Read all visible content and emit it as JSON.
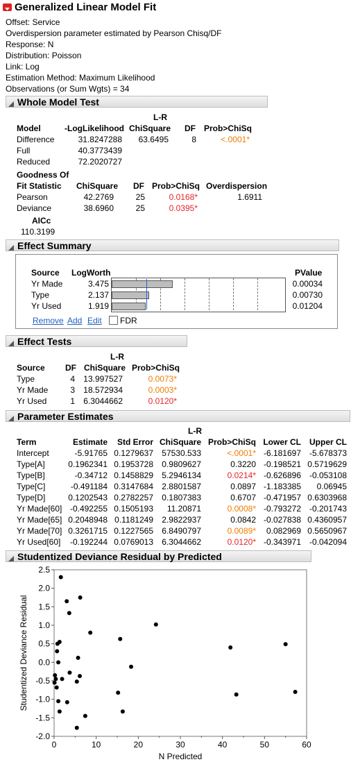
{
  "title": "Generalized Linear Model Fit",
  "info": [
    "Offset: Service",
    "Overdispersion parameter estimated by Pearson Chisq/DF",
    "Response: N",
    "Distribution: Poisson",
    "Link: Log",
    "Estimation Method: Maximum Likelihood",
    "Observations (or Sum Wgts) = 34"
  ],
  "whole_model": {
    "title": "Whole Model Test",
    "lr_head": "L-R",
    "headers": [
      "Model",
      "-LogLikelihood",
      "ChiSquare",
      "DF",
      "Prob>ChiSq"
    ],
    "rows": [
      [
        "Difference",
        "31.8247288",
        "63.6495",
        "8",
        "<.0001*"
      ],
      [
        "Full",
        "40.3773439",
        "",
        "",
        ""
      ],
      [
        "Reduced",
        "72.2020727",
        "",
        "",
        ""
      ]
    ],
    "gof_head1": "Goodness Of",
    "gof_headers": [
      "Fit Statistic",
      "ChiSquare",
      "DF",
      "Prob>ChiSq",
      "Overdispersion"
    ],
    "gof_rows": [
      [
        "Pearson",
        "42.2769",
        "25",
        "0.0168*",
        "1.6911"
      ],
      [
        "Deviance",
        "38.6960",
        "25",
        "0.0395*",
        ""
      ]
    ],
    "aicc_label": "AICc",
    "aicc_value": "110.3199"
  },
  "effect_summary": {
    "title": "Effect Summary",
    "headers": [
      "Source",
      "LogWorth",
      "PValue"
    ],
    "rows": [
      {
        "source": "Yr Made",
        "logworth": "3.475",
        "pvalue": "0.00034",
        "lw": 3.475
      },
      {
        "source": "Type",
        "logworth": "2.137",
        "pvalue": "0.00730",
        "lw": 2.137
      },
      {
        "source": "Yr Used",
        "logworth": "1.919",
        "pvalue": "0.01204",
        "lw": 1.919
      }
    ],
    "buttons": [
      "Remove",
      "Add",
      "Edit"
    ],
    "fdr_label": "FDR"
  },
  "effect_tests": {
    "title": "Effect Tests",
    "lr_head": "L-R",
    "headers": [
      "Source",
      "DF",
      "ChiSquare",
      "Prob>ChiSq"
    ],
    "rows": [
      [
        "Type",
        "4",
        "13.997527",
        "0.0073*"
      ],
      [
        "Yr Made",
        "3",
        "18.572934",
        "0.0003*"
      ],
      [
        "Yr Used",
        "1",
        "6.3044662",
        "0.0120*"
      ]
    ]
  },
  "param_est": {
    "title": "Parameter Estimates",
    "lr_head": "L-R",
    "headers": [
      "Term",
      "Estimate",
      "Std Error",
      "ChiSquare",
      "Prob>ChiSq",
      "Lower CL",
      "Upper CL"
    ],
    "rows": [
      [
        "Intercept",
        "-5.91765",
        "0.1279637",
        "57530.533",
        "<.0001*",
        "-6.181697",
        "-5.678373"
      ],
      [
        "Type[A]",
        "0.1962341",
        "0.1953728",
        "0.9809627",
        "0.3220",
        "-0.198521",
        "0.5719629"
      ],
      [
        "Type[B]",
        "-0.34712",
        "0.1458829",
        "5.2946134",
        "0.0214*",
        "-0.626896",
        "-0.053108"
      ],
      [
        "Type[C]",
        "-0.491184",
        "0.3147684",
        "2.8801587",
        "0.0897",
        "-1.183385",
        "0.06945"
      ],
      [
        "Type[D]",
        "0.1202543",
        "0.2782257",
        "0.1807383",
        "0.6707",
        "-0.471957",
        "0.6303968"
      ],
      [
        "Yr Made[60]",
        "-0.492255",
        "0.1505193",
        "11.20871",
        "0.0008*",
        "-0.793272",
        "-0.201743"
      ],
      [
        "Yr Made[65]",
        "0.2048948",
        "0.1181249",
        "2.9822937",
        "0.0842",
        "-0.027838",
        "0.4360957"
      ],
      [
        "Yr Made[70]",
        "0.3261715",
        "0.1227565",
        "6.8490797",
        "0.0089*",
        "0.082969",
        "0.5650967"
      ],
      [
        "Yr Used[60]",
        "-0.192244",
        "0.0769013",
        "6.3044662",
        "0.0120*",
        "-0.343971",
        "-0.042094"
      ]
    ]
  },
  "residual_plot": {
    "title": "Studentized Deviance Residual by Predicted"
  },
  "chart_data": {
    "type": "scatter",
    "xlabel": "N Predicted",
    "ylabel": "Studentized Deviance Residual",
    "xlim": [
      0,
      60
    ],
    "ylim": [
      -2.0,
      2.5
    ],
    "xticks": [
      "0",
      "10",
      "20",
      "30",
      "40",
      "50",
      "60"
    ],
    "yticks": [
      "2.5",
      "2.0",
      "1.5",
      "1.0",
      "0.5",
      "0.0",
      "-0.5",
      "-1.0",
      "-1.5",
      "-2.0"
    ],
    "points": [
      [
        1.6,
        2.3
      ],
      [
        3.0,
        1.65
      ],
      [
        6.2,
        1.75
      ],
      [
        3.6,
        1.33
      ],
      [
        8.6,
        0.8
      ],
      [
        15.7,
        0.63
      ],
      [
        24.2,
        1.02
      ],
      [
        41.9,
        0.4
      ],
      [
        55.0,
        0.49
      ],
      [
        1.3,
        0.55
      ],
      [
        0.8,
        0.5
      ],
      [
        0.7,
        0.3
      ],
      [
        5.7,
        0.12
      ],
      [
        1.0,
        0.0
      ],
      [
        18.3,
        -0.12
      ],
      [
        3.7,
        -0.28
      ],
      [
        0.2,
        -0.35
      ],
      [
        0.4,
        -0.45
      ],
      [
        6.1,
        -0.37
      ],
      [
        1.9,
        -0.45
      ],
      [
        0.1,
        -0.55
      ],
      [
        5.4,
        -0.52
      ],
      [
        0.6,
        -0.68
      ],
      [
        15.2,
        -0.82
      ],
      [
        43.3,
        -0.87
      ],
      [
        57.3,
        -0.8
      ],
      [
        1.0,
        -1.05
      ],
      [
        3.1,
        -1.08
      ],
      [
        16.3,
        -1.33
      ],
      [
        1.3,
        -1.33
      ],
      [
        7.4,
        -1.45
      ],
      [
        5.4,
        -1.77
      ]
    ]
  }
}
